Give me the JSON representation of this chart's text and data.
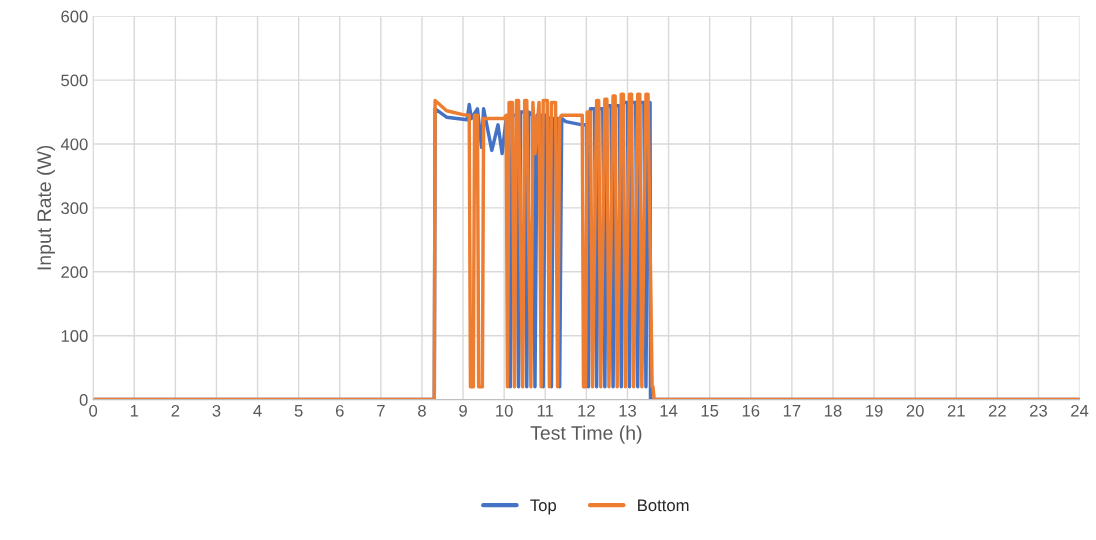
{
  "chart_data": {
    "type": "line",
    "xlabel": "Test Time (h)",
    "ylabel": "Input Rate (W)",
    "xlim": [
      0,
      24
    ],
    "xticks": [
      0,
      1,
      2,
      3,
      4,
      5,
      6,
      7,
      8,
      9,
      10,
      11,
      12,
      13,
      14,
      15,
      16,
      17,
      18,
      19,
      20,
      21,
      22,
      23,
      24
    ],
    "ylim": [
      0,
      600
    ],
    "yticks": [
      0,
      100,
      200,
      300,
      400,
      500,
      600
    ],
    "grid": true,
    "legend": "bottom",
    "marker": "none",
    "line_style": "solid",
    "series": [
      {
        "name": "Top",
        "color": "#4472c4",
        "x": [
          0,
          8.3,
          8.32,
          8.6,
          9.1,
          9.15,
          9.2,
          9.35,
          9.45,
          9.5,
          9.7,
          9.85,
          9.95,
          10.05,
          10.1,
          10.15,
          10.2,
          10.3,
          10.35,
          10.4,
          10.5,
          10.55,
          10.6,
          10.7,
          10.75,
          10.8,
          10.9,
          10.95,
          11.0,
          11.1,
          11.15,
          11.2,
          11.3,
          11.35,
          11.4,
          11.5,
          11.9,
          12.0,
          12.05,
          12.1,
          12.2,
          12.25,
          12.3,
          12.4,
          12.45,
          12.5,
          12.6,
          12.65,
          12.7,
          12.8,
          12.85,
          12.9,
          13.0,
          13.05,
          13.1,
          13.2,
          13.25,
          13.3,
          13.4,
          13.45,
          13.5,
          13.55,
          13.56,
          20,
          24
        ],
        "values": [
          0,
          0,
          455,
          442,
          438,
          462,
          440,
          455,
          395,
          455,
          390,
          430,
          385,
          440,
          440,
          20,
          445,
          445,
          20,
          450,
          450,
          20,
          450,
          445,
          20,
          445,
          445,
          20,
          445,
          440,
          20,
          440,
          440,
          20,
          440,
          435,
          430,
          430,
          20,
          455,
          455,
          20,
          455,
          455,
          20,
          460,
          460,
          20,
          460,
          460,
          20,
          465,
          465,
          20,
          465,
          465,
          20,
          465,
          465,
          20,
          465,
          465,
          0,
          0,
          0
        ]
      },
      {
        "name": "Bottom",
        "color": "#ed7d31",
        "x": [
          0,
          8.3,
          8.32,
          8.6,
          9.0,
          9.15,
          9.18,
          9.25,
          9.28,
          9.35,
          9.38,
          9.47,
          9.5,
          10.0,
          10.05,
          10.08,
          10.12,
          10.2,
          10.25,
          10.3,
          10.35,
          10.45,
          10.5,
          10.55,
          10.65,
          10.7,
          10.75,
          10.85,
          10.9,
          10.95,
          11.05,
          11.1,
          11.15,
          11.25,
          11.3,
          11.35,
          11.4,
          11.9,
          11.93,
          11.98,
          12.02,
          12.1,
          12.15,
          12.25,
          12.3,
          12.35,
          12.45,
          12.5,
          12.55,
          12.65,
          12.7,
          12.75,
          12.85,
          12.9,
          12.95,
          13.05,
          13.1,
          13.15,
          13.25,
          13.3,
          13.35,
          13.45,
          13.5,
          13.6,
          13.62,
          13.65,
          24
        ],
        "values": [
          0,
          0,
          468,
          452,
          446,
          445,
          20,
          20,
          445,
          445,
          20,
          20,
          440,
          440,
          445,
          20,
          465,
          465,
          20,
          468,
          468,
          20,
          468,
          468,
          20,
          465,
          385,
          465,
          20,
          468,
          468,
          20,
          465,
          465,
          20,
          440,
          445,
          445,
          20,
          20,
          450,
          450,
          20,
          468,
          468,
          20,
          470,
          470,
          20,
          475,
          475,
          20,
          478,
          478,
          20,
          478,
          478,
          20,
          478,
          478,
          20,
          478,
          478,
          20,
          20,
          0,
          0
        ]
      }
    ]
  }
}
